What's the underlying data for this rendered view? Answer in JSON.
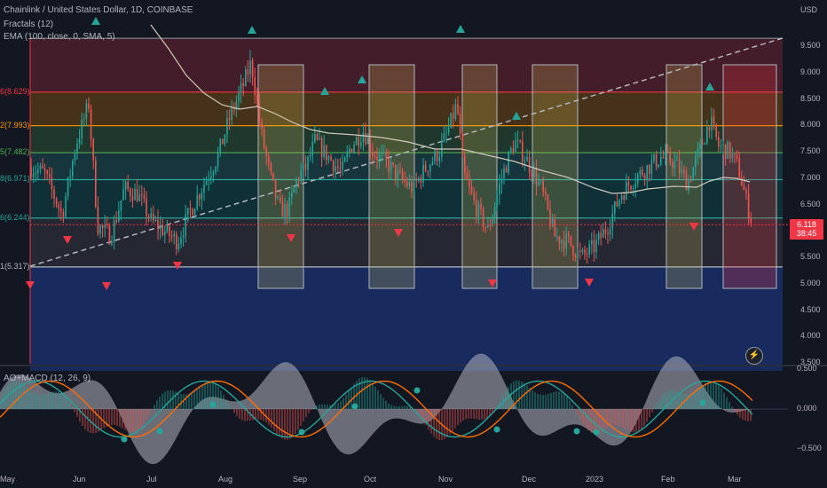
{
  "header": {
    "symbol_line": "Chainlink / United States Dollar, 1D, COINBASE",
    "indicator_1": "Fractals (12)",
    "indicator_2": "EMA (100, close, 0, SMA, 5)",
    "ao_macd": "AO+MACD (12, 26, 9)"
  },
  "currency": "USD",
  "price_axis": [
    "9.500",
    "9.000",
    "8.500",
    "8.000",
    "7.500",
    "7.000",
    "6.500",
    "5.500",
    "5.000",
    "4.500",
    "4.000",
    "3.500"
  ],
  "osc_axis": [
    "0.500",
    "0.000",
    "−0.500"
  ],
  "time_axis": [
    "May",
    "Jun",
    "Jul",
    "Aug",
    "Sep",
    "Oct",
    "Nov",
    "Dec",
    "2023",
    "Feb",
    "Mar"
  ],
  "current_price": {
    "value": "6.118",
    "countdown": "38:45"
  },
  "fib_levels": [
    {
      "label": "6(8.629)",
      "price": 8.629,
      "color": "#f23645"
    },
    {
      "label": "2(7.993)",
      "price": 7.993,
      "color": "#ff9800"
    },
    {
      "label": "5(7.482)",
      "price": 7.482,
      "color": "#4caf50"
    },
    {
      "label": "8(6.971)",
      "price": 6.971,
      "color": "#26a69a"
    },
    {
      "label": "6(6.244)",
      "price": 6.244,
      "color": "#26a69a"
    },
    {
      "label": "1(5.317)",
      "price": 5.317,
      "color": "#b2b5be"
    }
  ],
  "colors": {
    "up": "#26a69a",
    "down": "#ef5350",
    "ema": "#d1c8b8",
    "macd": "#2962ff",
    "signal": "#ff6d00"
  }
}
